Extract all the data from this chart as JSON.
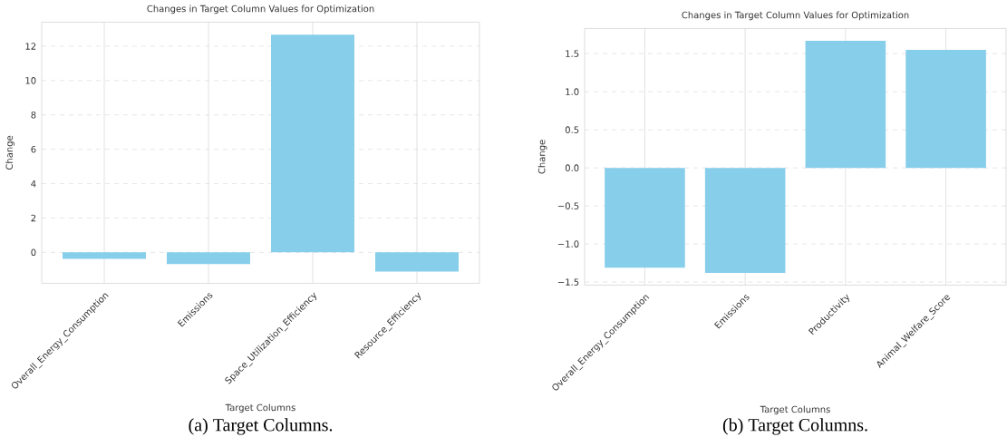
{
  "chart_data": [
    {
      "type": "bar",
      "title": "Changes in Target Column Values for Optimization",
      "xlabel": "Target Columns",
      "ylabel": "Change",
      "categories": [
        "Overall_Energy_Consumption",
        "Emissions",
        "Space_Utilization_Efficiency",
        "Resource_Efficiency"
      ],
      "values": [
        -0.38,
        -0.68,
        12.67,
        -1.11
      ],
      "color": "#87ceeb",
      "ylim": [
        -1.8,
        13.4
      ],
      "yticks": [
        0,
        2,
        4,
        6,
        8,
        10,
        12
      ],
      "grid": true,
      "annotations": [
        "(a) Target Columns."
      ]
    },
    {
      "type": "bar",
      "title": "Changes in Target Column Values for Optimization",
      "xlabel": "Target Columns",
      "ylabel": "Change",
      "categories": [
        "Overall_Energy_Consumption",
        "Emissions",
        "Productivity",
        "Animal_Welfare_Score"
      ],
      "values": [
        -1.31,
        -1.38,
        1.67,
        1.55
      ],
      "color": "#87ceeb",
      "ylim": [
        -1.54,
        1.83
      ],
      "yticks": [
        {
          "value": -1.5,
          "label": "−1.5"
        },
        {
          "value": -1.0,
          "label": "−1.0"
        },
        {
          "value": -0.5,
          "label": "−0.5"
        },
        {
          "value": 0,
          "label": "0.0"
        },
        {
          "value": 0.5,
          "label": "0.5"
        },
        {
          "value": 1.0,
          "label": "1.0"
        },
        {
          "value": 1.5,
          "label": "1.5"
        }
      ],
      "grid": true,
      "annotations": [
        "(b) Target Columns."
      ]
    }
  ]
}
